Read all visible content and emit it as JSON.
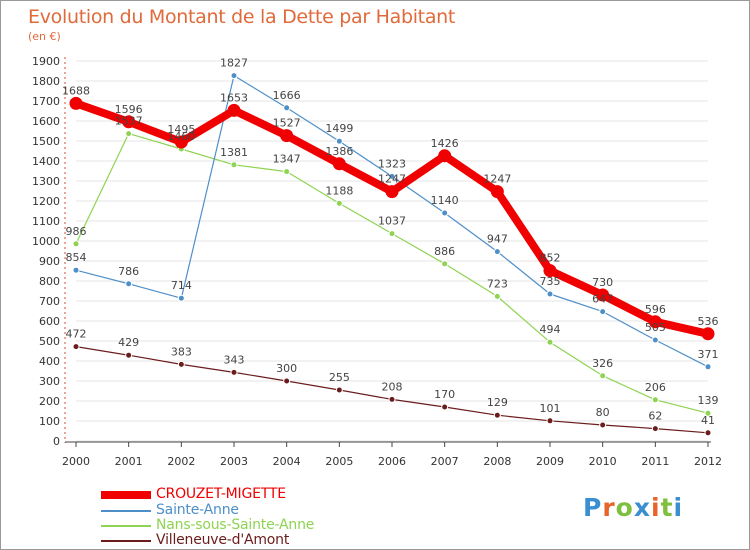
{
  "title": "Evolution du Montant de la Dette par Habitant",
  "subtitle": "(en €)",
  "logo_text": "Proxiti",
  "colors": {
    "title": "#e06a3a",
    "axis": "#555555",
    "grid": "#e6e6e6",
    "logo": [
      "#3a8fd0",
      "#e8642c",
      "#7fbf3f",
      "#3a8fd0",
      "#e8642c",
      "#7fbf3f",
      "#3a8fd0"
    ]
  },
  "chart_data": {
    "type": "line",
    "x": [
      "2000",
      "2001",
      "2002",
      "2003",
      "2004",
      "2005",
      "2006",
      "2007",
      "2008",
      "2009",
      "2010",
      "2011",
      "2012"
    ],
    "ylim": [
      0,
      1900
    ],
    "yticks": [
      0,
      100,
      200,
      300,
      400,
      500,
      600,
      700,
      800,
      900,
      1000,
      1100,
      1200,
      1300,
      1400,
      1500,
      1600,
      1700,
      1800,
      1900
    ],
    "grid": true,
    "legend_position": "bottom-left",
    "series": [
      {
        "name": "CROUZET-MIGETTE",
        "color": "#f00000",
        "lineWidth": 8,
        "markerRadius": 6.5,
        "values": [
          1688,
          1596,
          1495,
          1653,
          1527,
          1386,
          1247,
          1426,
          1247,
          852,
          730,
          596,
          536
        ]
      },
      {
        "name": "Sainte-Anne",
        "color": "#4f8fc9",
        "lineWidth": 1.2,
        "markerRadius": 3,
        "values": [
          854,
          786,
          714,
          1827,
          1666,
          1499,
          1323,
          1140,
          947,
          735,
          647,
          505,
          371
        ]
      },
      {
        "name": "Nans-sous-Sainte-Anne",
        "color": "#8ed351",
        "lineWidth": 1.2,
        "markerRadius": 3,
        "values": [
          986,
          1537,
          1460,
          1381,
          1347,
          1188,
          1037,
          886,
          723,
          494,
          326,
          206,
          139
        ]
      },
      {
        "name": "Villeneuve-d'Amont",
        "color": "#6b1c1c",
        "lineWidth": 1.2,
        "markerRadius": 3,
        "values": [
          472,
          429,
          383,
          343,
          300,
          255,
          208,
          170,
          129,
          101,
          80,
          62,
          41
        ]
      }
    ]
  }
}
